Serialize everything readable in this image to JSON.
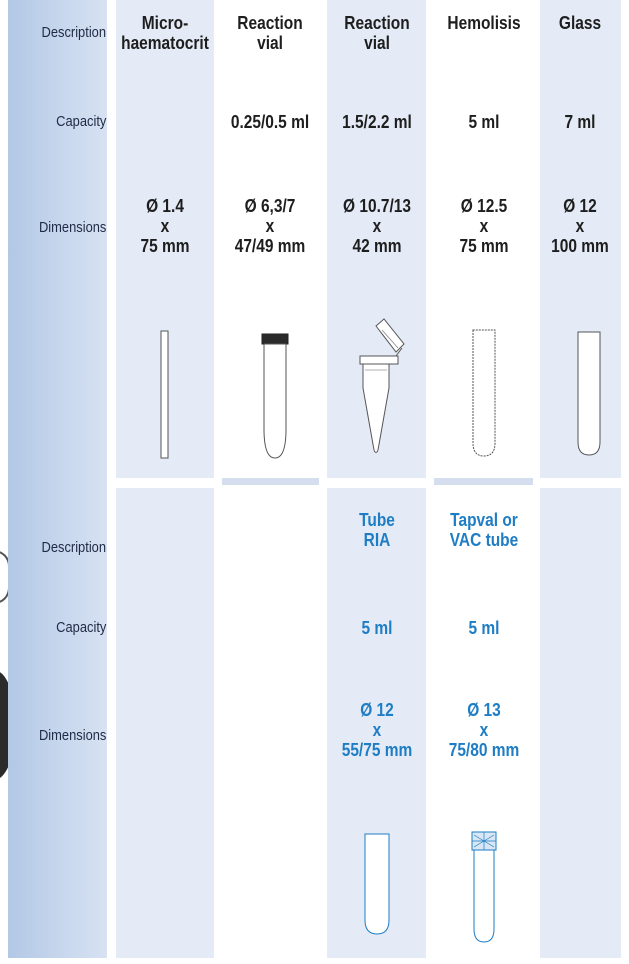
{
  "top": {
    "labels": {
      "description": "Description",
      "capacity": "Capacity",
      "dimensions": "Dimensions"
    },
    "columns": [
      {
        "description": [
          "Micro-",
          "haematocrit"
        ],
        "capacity": "",
        "dimensions": [
          "Ø 1.4",
          "x",
          "75 mm"
        ],
        "icon": "capillary-tube-icon"
      },
      {
        "description": [
          "Reaction",
          "vial"
        ],
        "capacity": "0.25/0.5 ml",
        "dimensions": [
          "Ø 6,3/7",
          "x",
          "47/49 mm"
        ],
        "icon": "capped-vial-icon"
      },
      {
        "description": [
          "Reaction",
          "vial"
        ],
        "capacity": "1.5/2.2 ml",
        "dimensions": [
          "Ø 10.7/13",
          "x",
          "42 mm"
        ],
        "icon": "flip-cap-tube-icon"
      },
      {
        "description": [
          "Hemolisis"
        ],
        "capacity": "5 ml",
        "dimensions": [
          "Ø 12.5",
          "x",
          "75 mm"
        ],
        "icon": "hemolysis-tube-icon"
      },
      {
        "description": [
          "Glass"
        ],
        "capacity": "7 ml",
        "dimensions": [
          "Ø 12",
          "x",
          "100 mm"
        ],
        "icon": "glass-tube-icon"
      }
    ]
  },
  "bottom": {
    "labels": {
      "description": "Description",
      "capacity": "Capacity",
      "dimensions": "Dimensions"
    },
    "columns": [
      {
        "description": [
          "Tube",
          "RIA"
        ],
        "capacity": "5 ml",
        "dimensions": [
          "Ø 12",
          "x",
          "55/75 mm"
        ],
        "icon": "ria-tube-icon"
      },
      {
        "description": [
          "Tapval or",
          "VAC tube"
        ],
        "capacity": "5 ml",
        "dimensions": [
          "Ø 13",
          "x",
          "75/80 mm"
        ],
        "icon": "vac-tube-icon"
      }
    ]
  },
  "colors": {
    "label_col": "#b2c8e6",
    "column_bg": "#e4ebf6",
    "accent_text": "#1e7dc4",
    "text": "#1e1e1e"
  }
}
